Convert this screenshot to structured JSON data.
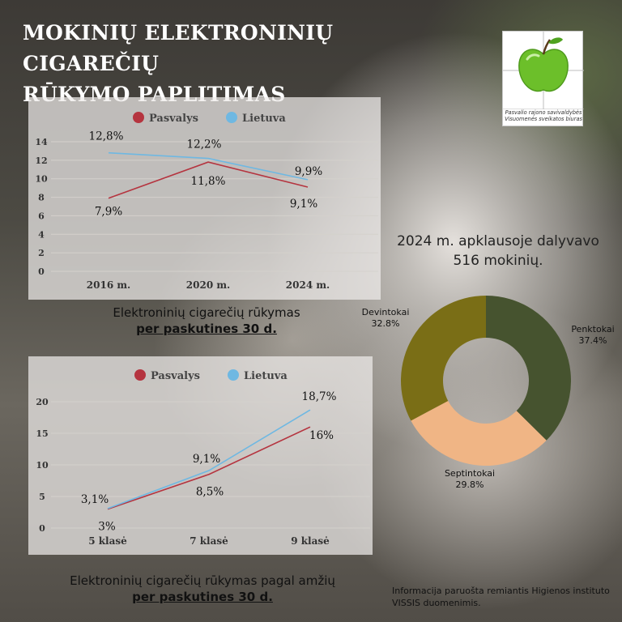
{
  "title_line1": "MOKINIŲ ELEKTRONINIŲ CIGAREČIŲ",
  "title_line2": "RŪKYMO PAPLITIMAS",
  "logo": {
    "line1": "Pasvalio rajono savivaldybės",
    "line2": "Visuomenės sveikatos biuras",
    "apple_color": "#6cbf2a"
  },
  "colors": {
    "pasvalys": "#b5343f",
    "lietuva": "#6fb8e2",
    "penktokai": "#46532f",
    "septintokai": "#f0b585",
    "devintokai": "#7a6e16"
  },
  "chart_data": [
    {
      "type": "line",
      "categories": [
        "2016 m.",
        "2020 m.",
        "2024 m."
      ],
      "series": [
        {
          "name": "Pasvalys",
          "values": [
            7.9,
            11.8,
            9.1
          ],
          "labels": [
            "7,9%",
            "11,8%",
            "9,1%"
          ]
        },
        {
          "name": "Lietuva",
          "values": [
            12.8,
            12.2,
            9.9
          ],
          "labels": [
            "12,8%",
            "12,2%",
            "9,9%"
          ]
        }
      ],
      "yticks": [
        "0",
        "2",
        "4",
        "6",
        "8",
        "10",
        "12",
        "14"
      ],
      "ylim": [
        0,
        14
      ],
      "legend": "top",
      "caption_line1": "Elektroninių cigarečių rūkymas",
      "caption_line2": "per paskutines 30 d."
    },
    {
      "type": "line",
      "categories": [
        "5 klasė",
        "7 klasė",
        "9 klasė"
      ],
      "series": [
        {
          "name": "Pasvalys",
          "values": [
            3,
            8.5,
            16
          ],
          "labels": [
            "3%",
            "8,5%",
            "16%"
          ]
        },
        {
          "name": "Lietuva",
          "values": [
            3.1,
            9.1,
            18.7
          ],
          "labels": [
            "3,1%",
            "9,1%",
            "18,7%"
          ]
        }
      ],
      "yticks": [
        "0",
        "5",
        "10",
        "15",
        "20"
      ],
      "ylim": [
        0,
        20
      ],
      "legend": "top",
      "caption_line1": "Elektroninių cigarečių rūkymas pagal amžių",
      "caption_line2": "per paskutines 30 d."
    },
    {
      "type": "pie",
      "survey_line1": "2024 m. apklausoje dalyvavo",
      "survey_line2": "516 mokinių.",
      "slices": [
        {
          "name": "Penktokai",
          "value": 37.4,
          "label": "37.4%"
        },
        {
          "name": "Septintokai",
          "value": 29.8,
          "label": "29.8%"
        },
        {
          "name": "Devintokai",
          "value": 32.8,
          "label": "32.8%"
        }
      ]
    }
  ],
  "footnote": "Informacija paruošta remiantis Higienos instituto VISSIS duomenimis."
}
